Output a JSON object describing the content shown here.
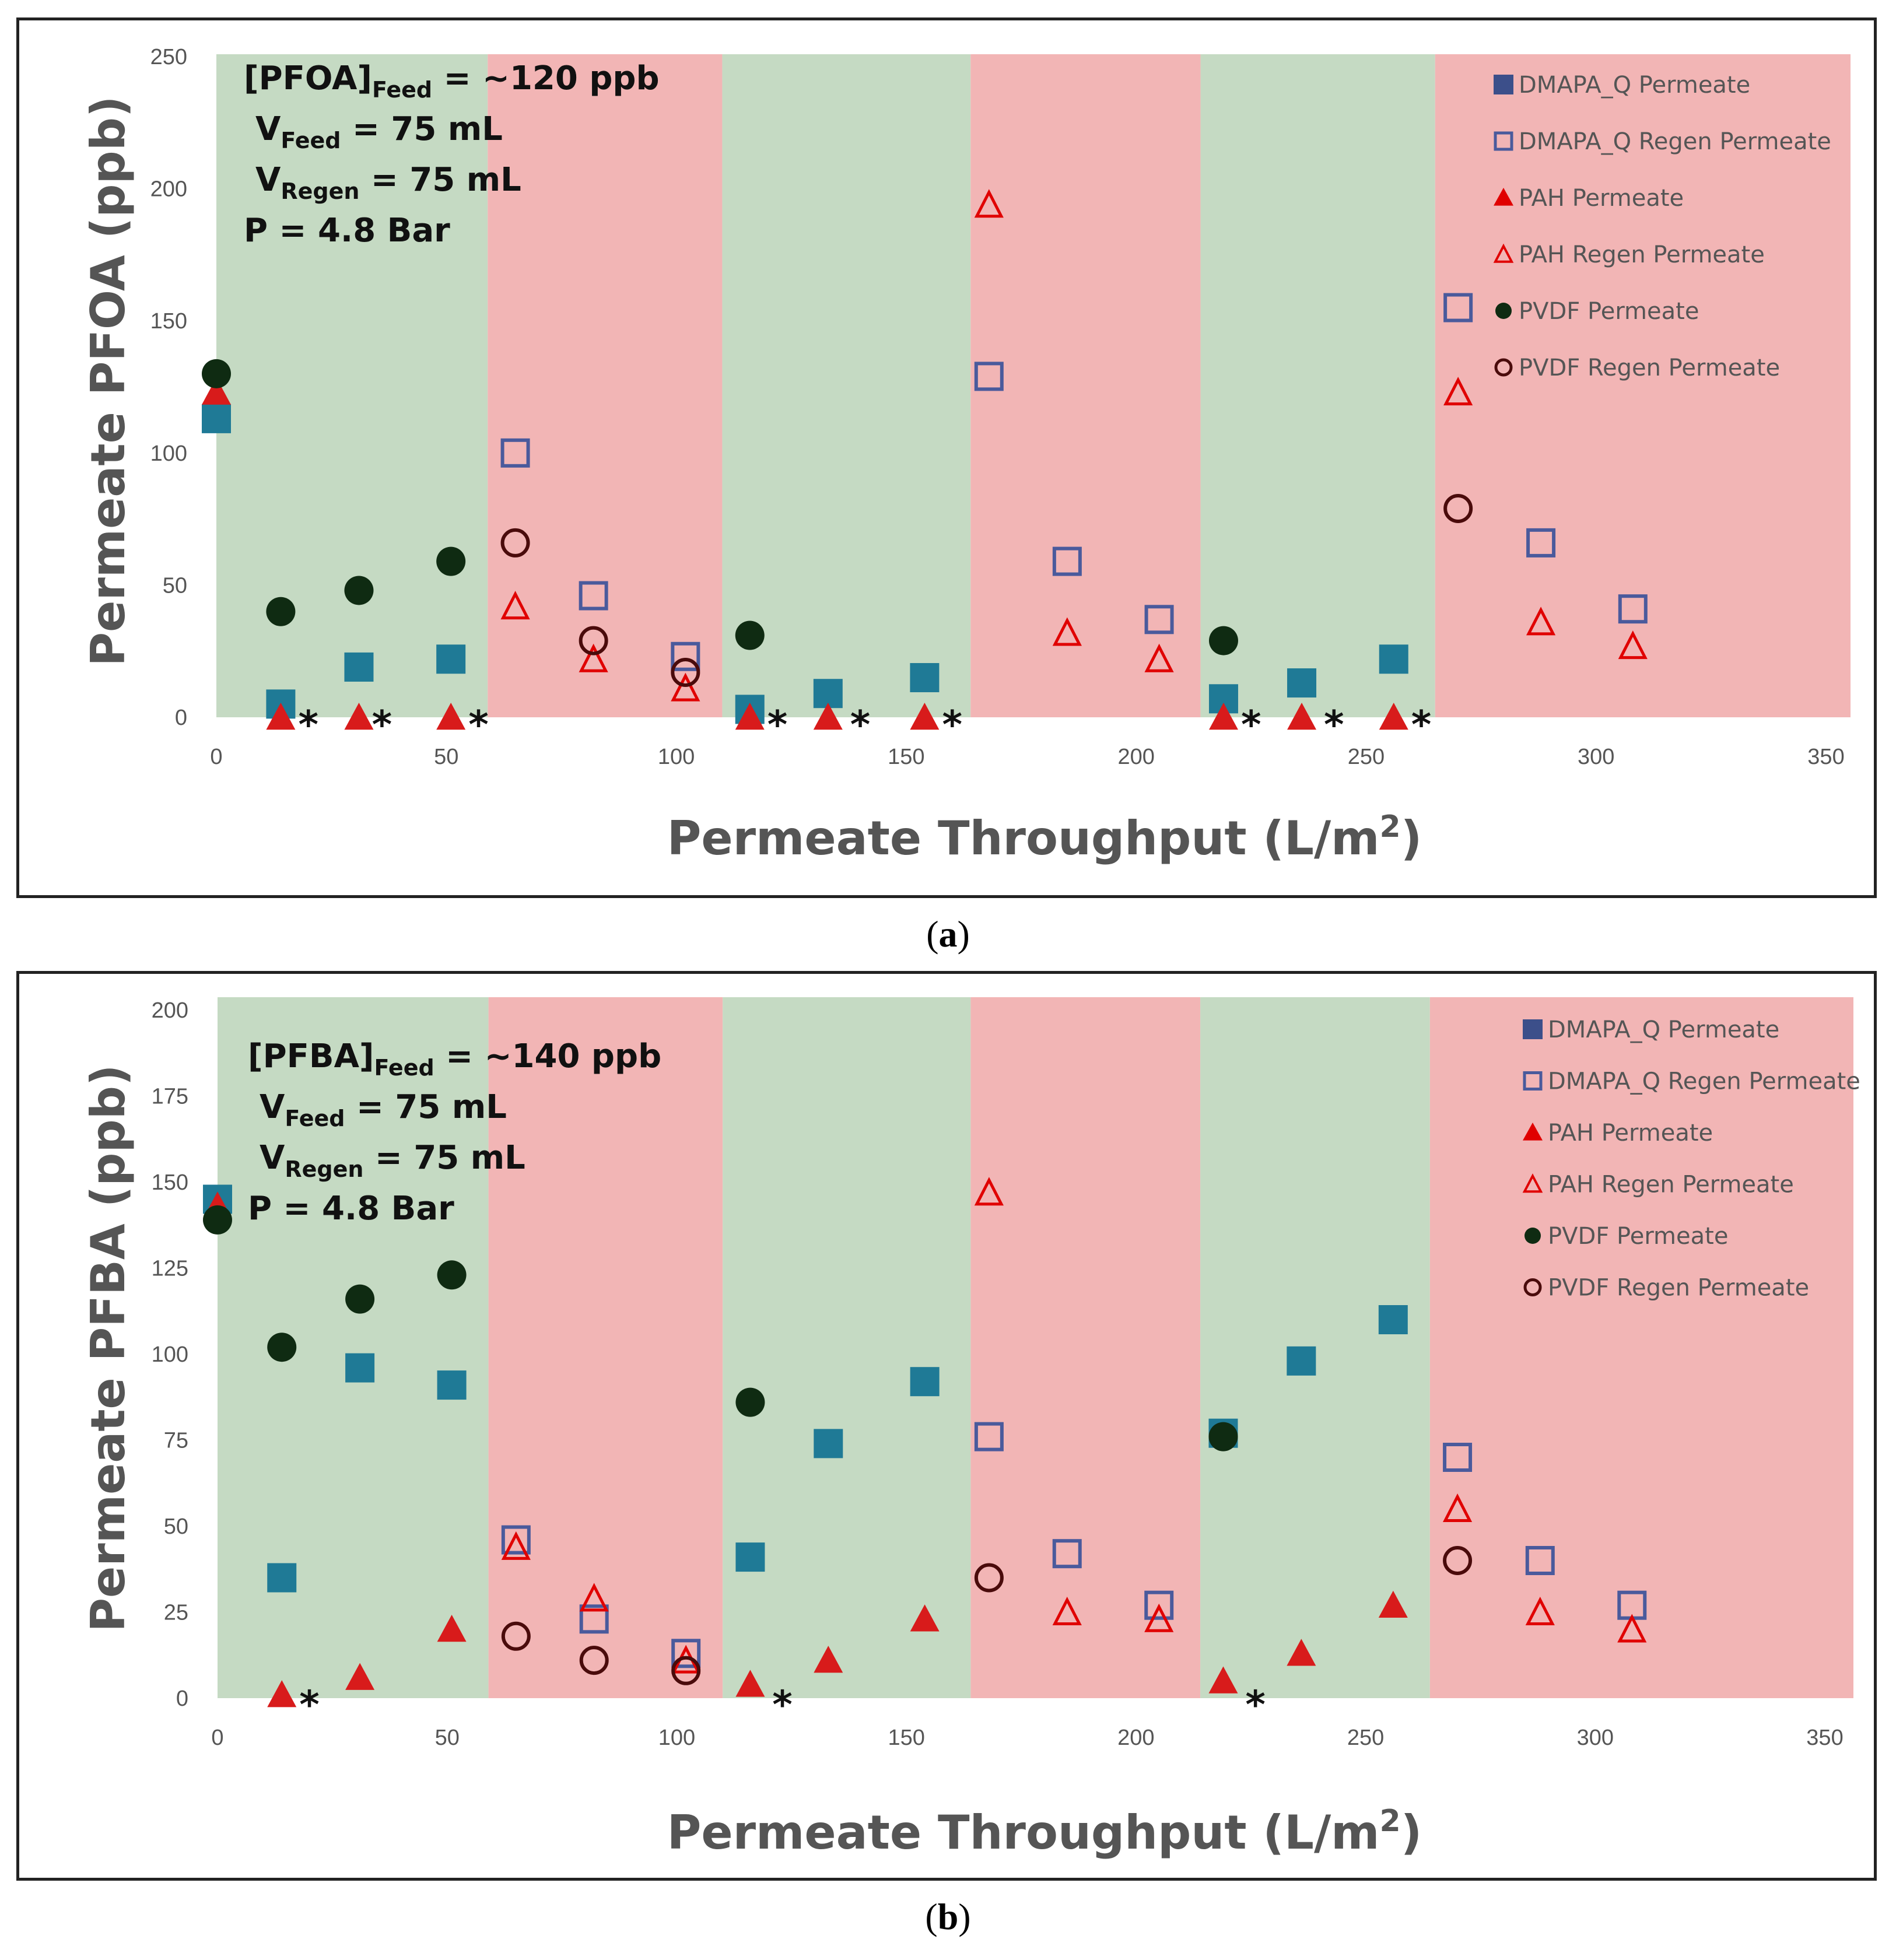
{
  "captions": {
    "a": "a",
    "b": "b"
  },
  "colors": {
    "green_band": "#c5dac3",
    "red_band": "#f2b5b5",
    "dmapa_fill": "#1f7a96",
    "dmapa_legend": "#3c4f8a",
    "dmapa_open": "#4a5a9c",
    "pah": "#e00000",
    "pah_fill": "#d81b1b",
    "pvdf_fill": "#0f2b12",
    "pvdf_open": "#4a0b0b"
  },
  "chart_data": [
    {
      "type": "scatter",
      "id": "a",
      "xlabel": "Permeate Throughput (L/m",
      "xlabel_sup": "2",
      "xlabel_end": ")",
      "ylabel": "Permeate PFOA (ppb)",
      "xlim": [
        0,
        350
      ],
      "ylim": [
        0,
        250
      ],
      "xticks": [
        0,
        50,
        100,
        150,
        200,
        250,
        300,
        350
      ],
      "yticks": [
        0,
        50,
        100,
        150,
        200,
        250
      ],
      "bands": [
        {
          "from": 0,
          "to": 59,
          "kind": "green"
        },
        {
          "from": 59,
          "to": 110,
          "kind": "red"
        },
        {
          "from": 110,
          "to": 164,
          "kind": "green"
        },
        {
          "from": 164,
          "to": 214,
          "kind": "red"
        },
        {
          "from": 214,
          "to": 265,
          "kind": "green"
        },
        {
          "from": 265,
          "to": 360,
          "kind": "red"
        }
      ],
      "info": {
        "line1": "[PFOA]",
        "line1_sub": "Feed",
        "line1_end": " = ~120 ppb",
        "line2": "V",
        "line2_sub": "Feed",
        "line2_end": " = 75 mL",
        "line3": "V",
        "line3_sub": "Regen",
        "line3_end": " = 75 mL",
        "line4": "P = 4.8 Bar"
      },
      "legend": [
        {
          "label": "DMAPA_Q Permeate",
          "marker": "square-filled"
        },
        {
          "label": "DMAPA_Q Regen Permeate",
          "marker": "square-open"
        },
        {
          "label": "PAH Permeate",
          "marker": "triangle-filled"
        },
        {
          "label": "PAH Regen Permeate",
          "marker": "triangle-open"
        },
        {
          "label": "PVDF Permeate",
          "marker": "circle-filled"
        },
        {
          "label": "PVDF Regen Permeate",
          "marker": "circle-open"
        }
      ],
      "series": [
        {
          "name": "DMAPA_Q Permeate",
          "marker": "square-filled",
          "x": [
            0,
            14,
            31,
            51,
            116,
            133,
            154,
            219,
            236,
            256
          ],
          "y": [
            113,
            5,
            19,
            22,
            3,
            9,
            15,
            7,
            13,
            22
          ]
        },
        {
          "name": "DMAPA_Q Regen Permeate",
          "marker": "square-open",
          "x": [
            65,
            82,
            102,
            168,
            185,
            205,
            270,
            288,
            308
          ],
          "y": [
            100,
            46,
            23,
            129,
            59,
            37,
            155,
            66,
            41
          ]
        },
        {
          "name": "PAH Permeate",
          "marker": "triangle-filled",
          "x": [
            0,
            14,
            31,
            51,
            116,
            133,
            154,
            219,
            236,
            256
          ],
          "y": [
            123,
            0,
            0,
            0,
            0,
            0,
            0,
            0,
            0,
            0
          ]
        },
        {
          "name": "PAH Regen Permeate",
          "marker": "triangle-open",
          "x": [
            65,
            82,
            102,
            168,
            185,
            205,
            270,
            288,
            308
          ],
          "y": [
            42,
            22,
            11,
            194,
            32,
            22,
            123,
            36,
            27
          ]
        },
        {
          "name": "PVDF Permeate",
          "marker": "circle-filled",
          "x": [
            0,
            14,
            31,
            51,
            116,
            219
          ],
          "y": [
            130,
            40,
            48,
            59,
            31,
            29
          ]
        },
        {
          "name": "PVDF Regen Permeate",
          "marker": "circle-open",
          "x": [
            65,
            82,
            102,
            270
          ],
          "y": [
            66,
            29,
            17,
            79
          ]
        }
      ],
      "asterisks": [
        {
          "x": 20,
          "y": 1,
          "text": "*"
        },
        {
          "x": 36,
          "y": 1,
          "text": "*"
        },
        {
          "x": 57,
          "y": 1,
          "text": "*"
        },
        {
          "x": 122,
          "y": 1,
          "text": "*"
        },
        {
          "x": 140,
          "y": 1,
          "text": "*"
        },
        {
          "x": 160,
          "y": 1,
          "text": "*"
        },
        {
          "x": 225,
          "y": 1,
          "text": "*"
        },
        {
          "x": 243,
          "y": 1,
          "text": "*"
        },
        {
          "x": 262,
          "y": 1,
          "text": "*"
        }
      ]
    },
    {
      "type": "scatter",
      "id": "b",
      "xlabel": "Permeate Throughput (L/m",
      "xlabel_sup": "2",
      "xlabel_end": ")",
      "ylabel": "Permeate PFBA (ppb)",
      "xlim": [
        0,
        350
      ],
      "ylim": [
        0,
        200
      ],
      "xticks": [
        0,
        50,
        100,
        150,
        200,
        250,
        300,
        350
      ],
      "yticks": [
        0,
        25,
        50,
        75,
        100,
        125,
        150,
        175,
        200
      ],
      "bands": [
        {
          "from": 0,
          "to": 59,
          "kind": "green"
        },
        {
          "from": 59,
          "to": 110,
          "kind": "red"
        },
        {
          "from": 110,
          "to": 164,
          "kind": "green"
        },
        {
          "from": 164,
          "to": 214,
          "kind": "red"
        },
        {
          "from": 214,
          "to": 264,
          "kind": "green"
        },
        {
          "from": 264,
          "to": 360,
          "kind": "red"
        }
      ],
      "info": {
        "line1": "[PFBA]",
        "line1_sub": "Feed",
        "line1_end": " = ~140 ppb",
        "line2": "V",
        "line2_sub": "Feed",
        "line2_end": " = 75 mL",
        "line3": "V",
        "line3_sub": "Regen",
        "line3_end": " = 75 mL",
        "line4": "P = 4.8 Bar"
      },
      "legend": [
        {
          "label": "DMAPA_Q Permeate",
          "marker": "square-filled"
        },
        {
          "label": "DMAPA_Q Regen Permeate",
          "marker": "square-open"
        },
        {
          "label": "PAH Permeate",
          "marker": "triangle-filled"
        },
        {
          "label": "PAH Regen Permeate",
          "marker": "triangle-open"
        },
        {
          "label": "PVDF Permeate",
          "marker": "circle-filled"
        },
        {
          "label": "PVDF Regen Permeate",
          "marker": "circle-open"
        }
      ],
      "series": [
        {
          "name": "DMAPA_Q Permeate",
          "marker": "square-filled",
          "x": [
            0,
            14,
            31,
            51,
            116,
            133,
            154,
            219,
            236,
            256
          ],
          "y": [
            145,
            35,
            96,
            91,
            41,
            74,
            92,
            77,
            98,
            110
          ]
        },
        {
          "name": "DMAPA_Q Regen Permeate",
          "marker": "square-open",
          "x": [
            65,
            82,
            102,
            168,
            185,
            205,
            270,
            288,
            308
          ],
          "y": [
            46,
            23,
            13,
            76,
            42,
            27,
            70,
            40,
            27
          ]
        },
        {
          "name": "PAH Permeate",
          "marker": "triangle-filled",
          "x": [
            0,
            14,
            31,
            51,
            116,
            133,
            154,
            219,
            236,
            256
          ],
          "y": [
            143,
            1,
            6,
            20,
            4,
            11,
            23,
            5,
            13,
            27
          ]
        },
        {
          "name": "PAH Regen Permeate",
          "marker": "triangle-open",
          "x": [
            65,
            82,
            102,
            168,
            185,
            205,
            270,
            288,
            308
          ],
          "y": [
            44,
            29,
            11,
            147,
            25,
            23,
            55,
            25,
            20
          ]
        },
        {
          "name": "PVDF Permeate",
          "marker": "circle-filled",
          "x": [
            0,
            14,
            31,
            51,
            116,
            219
          ],
          "y": [
            139,
            102,
            116,
            123,
            86,
            76
          ]
        },
        {
          "name": "PVDF Regen Permeate",
          "marker": "circle-open",
          "x": [
            65,
            82,
            102,
            168,
            270
          ],
          "y": [
            18,
            11,
            8,
            35,
            40
          ]
        }
      ],
      "asterisks": [
        {
          "x": 20,
          "y": 1,
          "text": "*"
        },
        {
          "x": 123,
          "y": 1,
          "text": "*"
        },
        {
          "x": 226,
          "y": 1,
          "text": "*"
        }
      ]
    }
  ]
}
